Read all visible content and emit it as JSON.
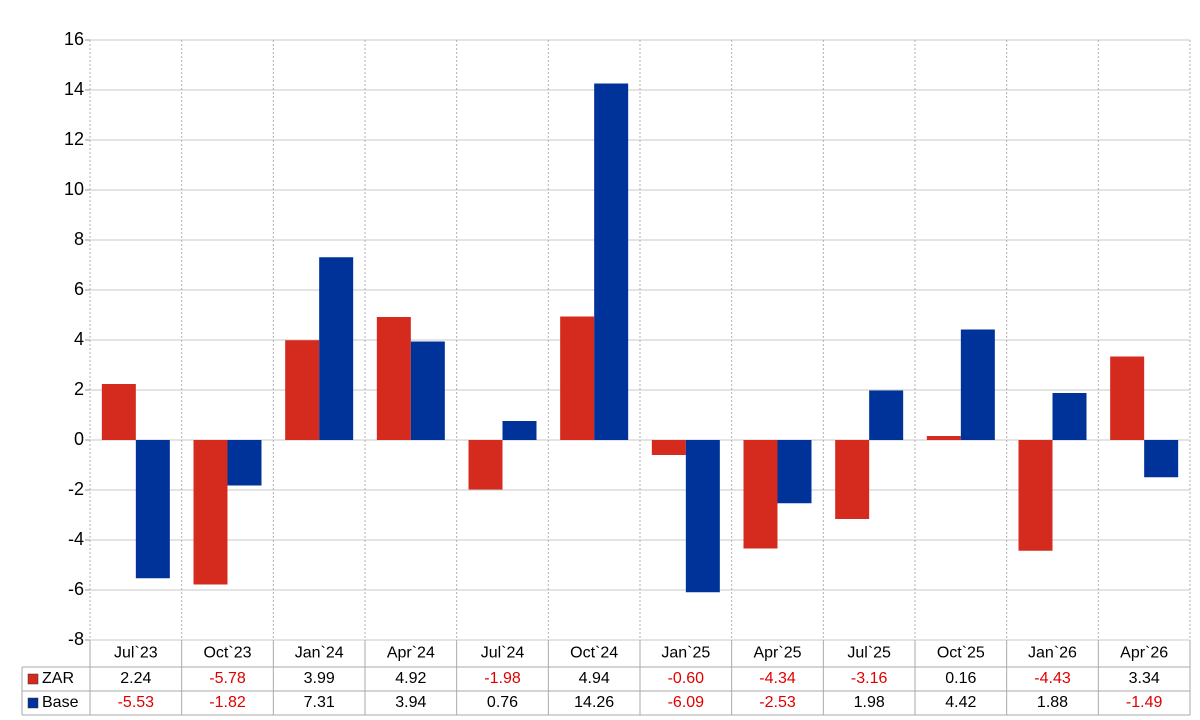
{
  "chart_data": {
    "type": "bar",
    "categories": [
      "Jul`23",
      "Oct`23",
      "Jan`24",
      "Apr`24",
      "Jul`24",
      "Oct`24",
      "Jan`25",
      "Apr`25",
      "Jul`25",
      "Oct`25",
      "Jan`26",
      "Apr`26"
    ],
    "series": [
      {
        "name": "ZAR",
        "color": "#d52b1e",
        "values": [
          2.24,
          -5.78,
          3.99,
          4.92,
          -1.98,
          4.94,
          -0.6,
          -4.34,
          -3.16,
          0.16,
          -4.43,
          3.34
        ],
        "value_labels": [
          "2.24",
          "-5.78",
          "3.99",
          "4.92",
          "-1.98",
          "4.94",
          "-0.60",
          "-4.34",
          "-3.16",
          "0.16",
          "-4.43",
          "3.34"
        ]
      },
      {
        "name": "Base",
        "color": "#003399",
        "values": [
          -5.53,
          -1.82,
          7.31,
          3.94,
          0.76,
          14.26,
          -6.09,
          -2.53,
          1.98,
          4.42,
          1.88,
          -1.49
        ],
        "value_labels": [
          "-5.53",
          "-1.82",
          "7.31",
          "3.94",
          "0.76",
          "14.26",
          "-6.09",
          "-2.53",
          "1.98",
          "4.42",
          "1.88",
          "-1.49"
        ]
      }
    ],
    "ylim": [
      -8,
      16
    ],
    "yticks": [
      -8,
      -6,
      -4,
      -2,
      0,
      2,
      4,
      6,
      8,
      10,
      12,
      14,
      16
    ],
    "grid": true,
    "negative_label_color": "#e00000"
  }
}
